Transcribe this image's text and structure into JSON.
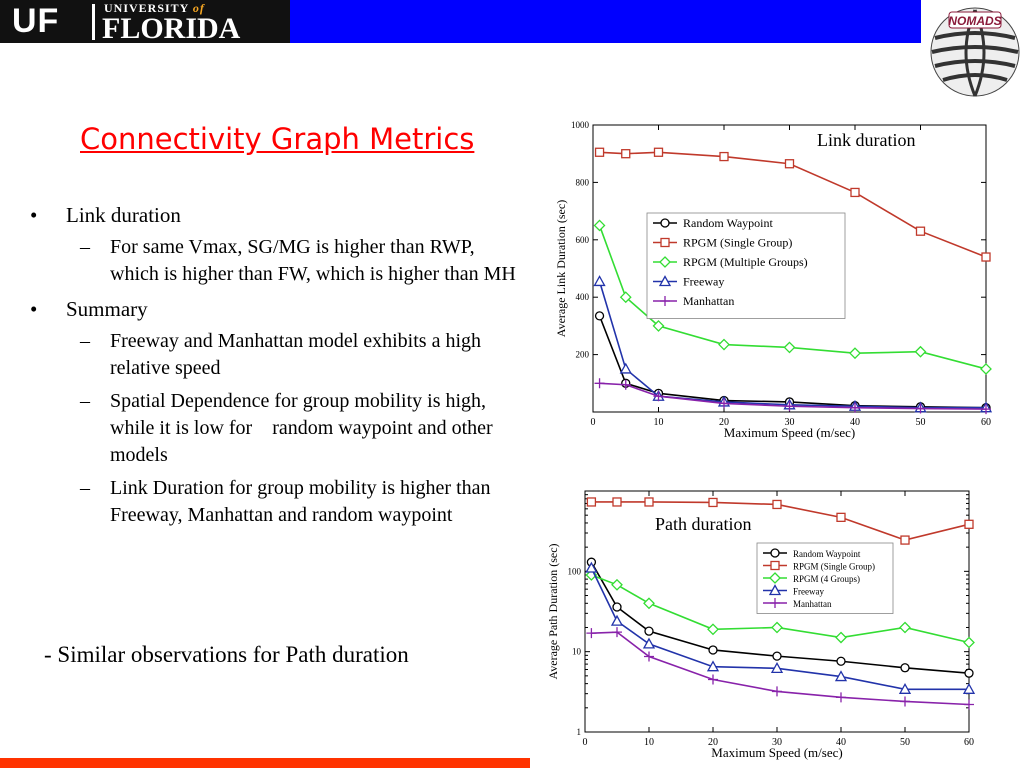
{
  "header": {
    "university_small": "UNIVERSITY",
    "university_of": "of",
    "university_big": "FLORIDA",
    "uf": "UF",
    "nomads": "NOMADS"
  },
  "slide": {
    "title": "Connectivity Graph Metrics",
    "bullets": [
      {
        "text": "Link duration",
        "sub": [
          "For same Vmax, SG/MG is higher than RWP, which is higher than FW, which is higher than MH"
        ]
      },
      {
        "text": "Summary",
        "sub": [
          "Freeway and Manhattan model exhibits a high relative speed",
          "Spatial Dependence for group mobility is high, while it is low for    random waypoint and other models",
          "Link Duration for group mobility is higher than Freeway, Manhattan and random waypoint"
        ]
      }
    ],
    "footnote": "- Similar observations for Path duration"
  },
  "colors": {
    "banner": "#0000ff",
    "title": "#ff0000",
    "bottom_bar": "#ff3300",
    "rwp": "#000000",
    "sg": "#c0392b",
    "mg": "#33dd33",
    "fw": "#2233aa",
    "mh": "#8822aa"
  },
  "chart_data": [
    {
      "type": "line",
      "annotation": "Link duration",
      "xlabel": "Maximum Speed (m/sec)",
      "ylabel": "Average Link Duration (sec)",
      "xlim": [
        0,
        60
      ],
      "ylim": [
        0,
        1000
      ],
      "xticks": [
        0,
        10,
        20,
        30,
        40,
        50,
        60
      ],
      "yticks": [
        200,
        400,
        600,
        800,
        1000
      ],
      "legend_position": "center-right",
      "series": [
        {
          "name": "Random Waypoint",
          "marker": "circle",
          "color": "#000000",
          "x": [
            1,
            5,
            10,
            20,
            30,
            40,
            50,
            60
          ],
          "y": [
            335,
            100,
            65,
            40,
            35,
            22,
            18,
            15
          ]
        },
        {
          "name": "RPGM (Single Group)",
          "marker": "square",
          "color": "#c0392b",
          "x": [
            1,
            5,
            10,
            20,
            30,
            40,
            50,
            60
          ],
          "y": [
            905,
            900,
            905,
            890,
            865,
            765,
            630,
            540
          ]
        },
        {
          "name": "RPGM (Multiple Groups)",
          "marker": "diamond",
          "color": "#33dd33",
          "x": [
            1,
            5,
            10,
            20,
            30,
            40,
            50,
            60
          ],
          "y": [
            650,
            400,
            300,
            235,
            225,
            205,
            210,
            150
          ]
        },
        {
          "name": "Freeway",
          "marker": "triangle",
          "color": "#2233aa",
          "x": [
            1,
            5,
            10,
            20,
            30,
            40,
            50,
            60
          ],
          "y": [
            455,
            150,
            55,
            35,
            25,
            20,
            15,
            15
          ]
        },
        {
          "name": "Manhattan",
          "marker": "plus",
          "color": "#8822aa",
          "x": [
            1,
            5,
            10,
            20,
            30,
            40,
            50,
            60
          ],
          "y": [
            100,
            95,
            55,
            30,
            20,
            15,
            12,
            10
          ]
        }
      ]
    },
    {
      "type": "line",
      "annotation": "Path duration",
      "xlabel": "Maximum Speed (m/sec)",
      "ylabel": "Average Path Duration (sec)",
      "scale_y": "log",
      "xlim": [
        0,
        60
      ],
      "ylim": [
        1,
        1000
      ],
      "xticks": [
        0,
        10,
        20,
        30,
        40,
        50,
        60
      ],
      "yticks": [
        1,
        10,
        100
      ],
      "legend_position": "upper-right",
      "series": [
        {
          "name": "Random Waypoint",
          "marker": "circle",
          "color": "#000000",
          "x": [
            1,
            5,
            10,
            20,
            30,
            40,
            50,
            60
          ],
          "y": [
            130,
            36,
            18,
            10.5,
            8.8,
            7.6,
            6.3,
            5.4
          ]
        },
        {
          "name": "RPGM (Single Group)",
          "marker": "square",
          "color": "#c0392b",
          "x": [
            1,
            5,
            10,
            20,
            30,
            40,
            50,
            60
          ],
          "y": [
            730,
            730,
            730,
            720,
            680,
            470,
            245,
            385
          ]
        },
        {
          "name": "RPGM (4 Groups)",
          "marker": "diamond",
          "color": "#33dd33",
          "x": [
            1,
            5,
            10,
            20,
            30,
            40,
            50,
            60
          ],
          "y": [
            90,
            68,
            40,
            19,
            20,
            15,
            20,
            13
          ]
        },
        {
          "name": "Freeway",
          "marker": "triangle",
          "color": "#2233aa",
          "x": [
            1,
            5,
            10,
            20,
            30,
            40,
            50,
            60
          ],
          "y": [
            110,
            24,
            12.5,
            6.5,
            6.2,
            4.9,
            3.4,
            3.4
          ]
        },
        {
          "name": "Manhattan",
          "marker": "plus",
          "color": "#8822aa",
          "x": [
            1,
            5,
            10,
            20,
            30,
            40,
            50,
            60
          ],
          "y": [
            17,
            17.5,
            8.7,
            4.5,
            3.2,
            2.7,
            2.4,
            2.2
          ]
        }
      ]
    }
  ]
}
